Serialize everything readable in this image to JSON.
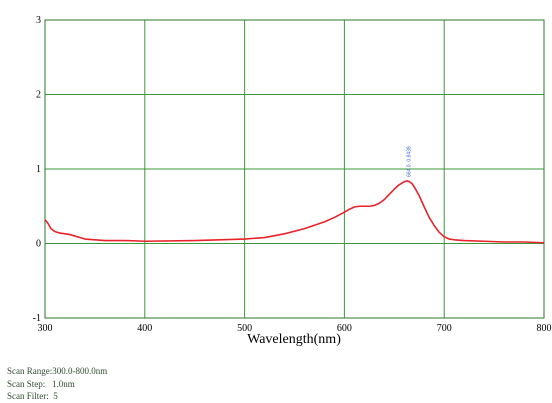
{
  "chart_data": {
    "type": "line",
    "title": "",
    "xlabel": "Wavelength(nm)",
    "ylabel": "",
    "xlim": [
      300,
      800
    ],
    "ylim": [
      -1,
      3
    ],
    "x_ticks": [
      "300",
      "400",
      "500",
      "600",
      "700",
      "800"
    ],
    "y_ticks": [
      "-1",
      "0",
      "1",
      "2",
      "3"
    ],
    "grid": true,
    "colors": {
      "line": "#e8232a",
      "grid": "#3a9a3a",
      "frame": "#2a7a2a"
    },
    "series": [
      {
        "x": [
          300,
          303,
          306,
          310,
          315,
          320,
          325,
          330,
          335,
          340,
          350,
          360,
          380,
          400,
          450,
          500,
          520,
          540,
          560,
          580,
          590,
          600,
          605,
          610,
          615,
          620,
          625,
          630,
          635,
          640,
          645,
          650,
          655,
          660,
          663,
          665,
          668,
          670,
          675,
          680,
          685,
          690,
          695,
          700,
          705,
          710,
          720,
          740,
          760,
          780,
          800
        ],
        "y": [
          0.32,
          0.27,
          0.2,
          0.16,
          0.14,
          0.13,
          0.12,
          0.1,
          0.08,
          0.06,
          0.05,
          0.04,
          0.04,
          0.03,
          0.04,
          0.06,
          0.08,
          0.13,
          0.2,
          0.29,
          0.35,
          0.42,
          0.46,
          0.49,
          0.5,
          0.5,
          0.5,
          0.51,
          0.54,
          0.59,
          0.66,
          0.73,
          0.79,
          0.83,
          0.84,
          0.83,
          0.8,
          0.76,
          0.64,
          0.49,
          0.35,
          0.24,
          0.15,
          0.09,
          0.06,
          0.05,
          0.04,
          0.03,
          0.02,
          0.02,
          0.01
        ]
      }
    ],
    "annotations": [
      {
        "x": 664,
        "y": 0.84,
        "text": "664.0, 0.8439"
      }
    ]
  },
  "scan_info": {
    "range": "Scan Range:300.0-800.0nm",
    "step": "Scan Step:   1.0nm",
    "filter": "Scan Filter:  5"
  }
}
